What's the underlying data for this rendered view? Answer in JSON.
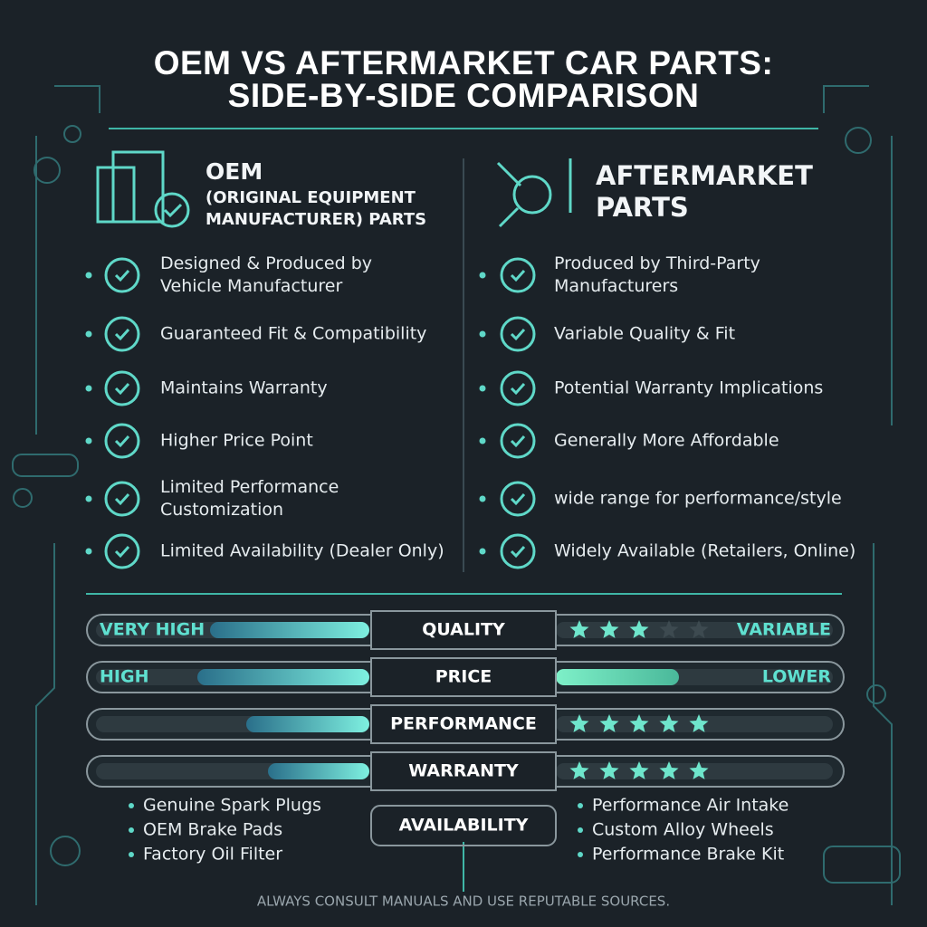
{
  "header": {
    "title": [
      "OEM VS AFTERMARKET CAR PARTS:",
      "SIDE-BY-SIDE COMPARISON"
    ]
  },
  "oem": {
    "heading": [
      "OEM",
      "(ORIGINAL EQUIPMENT",
      "MANUFACTURER) PARTS"
    ],
    "features": [
      [
        "Designed & Produced by",
        "Vehicle Manufacturer"
      ],
      [
        "Guaranteed Fit & Compatibility"
      ],
      [
        "Maintains Warranty"
      ],
      [
        "Higher Price Point"
      ],
      [
        "Limited Performance",
        "Customization"
      ],
      [
        "Limited Availability (Dealer Only)"
      ]
    ],
    "examples": [
      "Genuine Spark Plugs",
      "OEM Brake Pads",
      "Factory Oil Filter"
    ]
  },
  "aftermarket": {
    "heading": [
      "AFTERMARKET",
      "PARTS"
    ],
    "features": [
      [
        "Produced by Third-Party",
        "Manufacturers"
      ],
      [
        "Variable Quality & Fit"
      ],
      [
        "Potential Warranty Implications"
      ],
      [
        "Generally More Affordable"
      ],
      [
        "wide range for performance/style"
      ],
      [
        "Widely Available (Retailers, Online)"
      ]
    ],
    "examples": [
      "Performance Air Intake",
      "Custom Alloy Wheels",
      "Performance Brake Kit"
    ]
  },
  "comparison": {
    "rows": [
      {
        "label": "QUALITY",
        "oem": "VERY HIGH",
        "aftermarket": "VARIABLE"
      },
      {
        "label": "PRICE",
        "oem": "HIGH",
        "aftermarket": "LOWER"
      },
      {
        "label": "PERFORMANCE"
      },
      {
        "label": "WARRANTY"
      },
      {
        "label": "AVAILABILITY"
      }
    ]
  },
  "footer": "ALWAYS CONSULT MANUALS AND USE REPUTABLE SOURCES."
}
